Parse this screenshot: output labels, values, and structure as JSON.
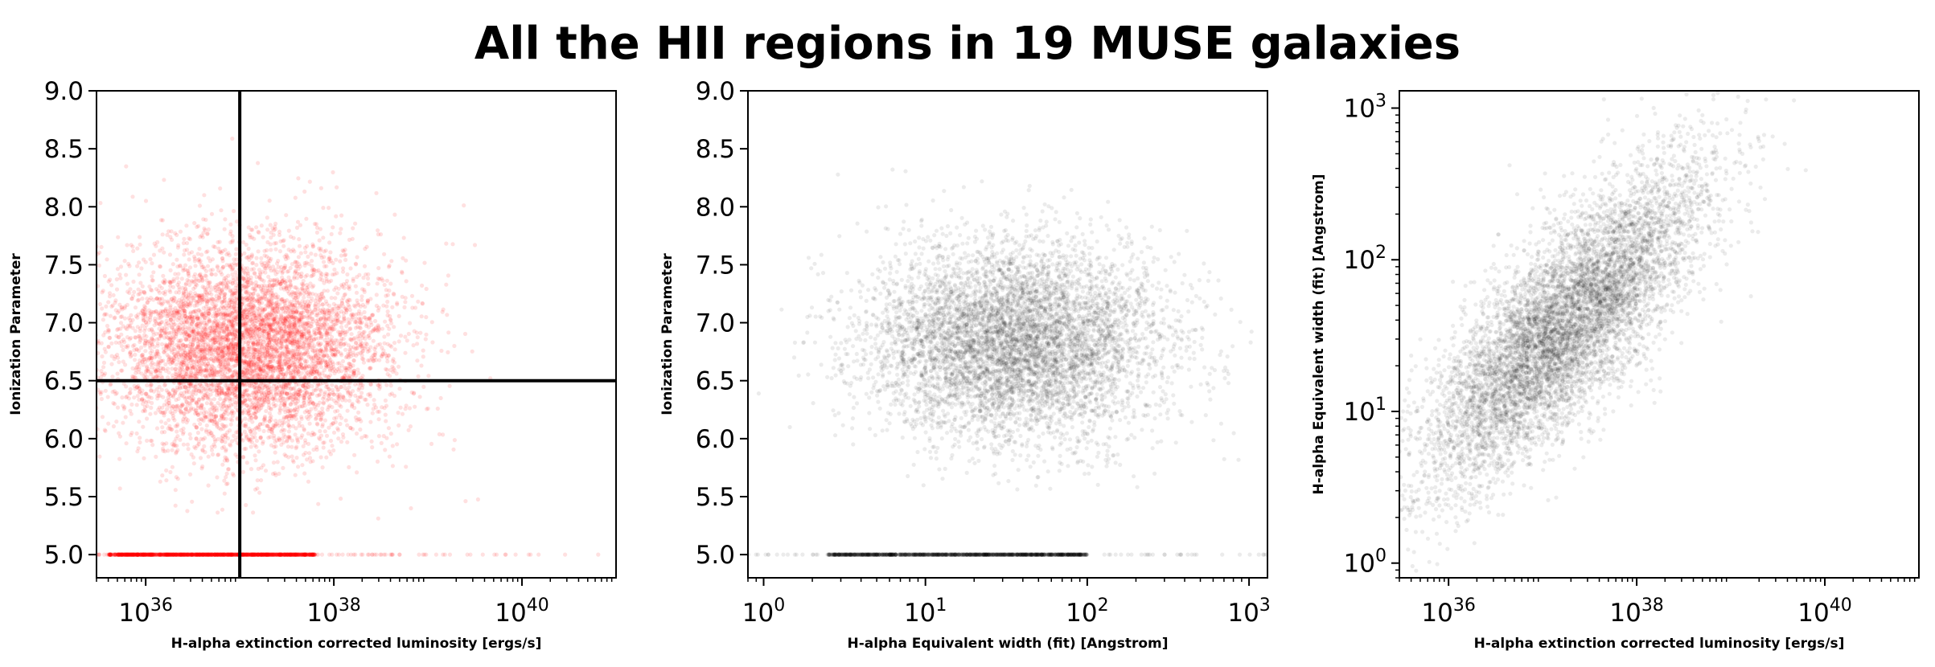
{
  "title": "All the HII regions in 19 MUSE galaxies",
  "chart_data": [
    {
      "type": "scatter",
      "xlabel": "H-alpha extinction corrected luminosity [ergs/s]",
      "ylabel": "Ionization Parameter",
      "xscale": "log",
      "xlim": [
        3e+35,
        1e+41
      ],
      "ylim": [
        4.8,
        9.0
      ],
      "xticks": [
        1e+36,
        1e+38,
        1e+40
      ],
      "xtick_labels": [
        {
          "base": "10",
          "exp": "36"
        },
        {
          "base": "10",
          "exp": "38"
        },
        {
          "base": "10",
          "exp": "40"
        }
      ],
      "yticks": [
        5.0,
        5.5,
        6.0,
        6.5,
        7.0,
        7.5,
        8.0,
        8.5,
        9.0
      ],
      "ytick_labels": [
        "5.0",
        "5.5",
        "6.0",
        "6.5",
        "7.0",
        "7.5",
        "8.0",
        "8.5",
        "9.0"
      ],
      "color": "#ff0000",
      "point_alpha": 0.12,
      "reference_lines": {
        "vertical_x": 1e+37,
        "horizontal_y": 6.5,
        "color": "#000000"
      },
      "distribution": {
        "cloud": {
          "log_x_center": 37.1,
          "log_x_spread": 0.75,
          "y_center": 6.8,
          "y_spread": 0.45,
          "count": 6000
        },
        "floor": {
          "y": 5.0,
          "log_x_range": [
            35.6,
            37.8
          ],
          "count": 1500
        }
      }
    },
    {
      "type": "scatter",
      "xlabel": "H-alpha Equivalent width (fit) [Angstrom]",
      "ylabel": "Ionization Parameter",
      "xscale": "log",
      "xlim": [
        0.8,
        1300
      ],
      "ylim": [
        4.8,
        9.0
      ],
      "xticks": [
        1,
        10,
        100,
        1000
      ],
      "xtick_labels": [
        {
          "base": "10",
          "exp": "0"
        },
        {
          "base": "10",
          "exp": "1"
        },
        {
          "base": "10",
          "exp": "2"
        },
        {
          "base": "10",
          "exp": "3"
        }
      ],
      "yticks": [
        5.0,
        5.5,
        6.0,
        6.5,
        7.0,
        7.5,
        8.0,
        8.5,
        9.0
      ],
      "ytick_labels": [
        "5.0",
        "5.5",
        "6.0",
        "6.5",
        "7.0",
        "7.5",
        "8.0",
        "8.5",
        "9.0"
      ],
      "color": "#000000",
      "point_alpha": 0.08,
      "distribution": {
        "cloud": {
          "log_x_center": 1.55,
          "log_x_spread": 0.45,
          "y_center": 6.85,
          "y_spread": 0.42,
          "count": 6000
        },
        "floor": {
          "y": 5.0,
          "log_x_range": [
            0.4,
            2.0
          ],
          "count": 1500
        }
      }
    },
    {
      "type": "scatter",
      "xlabel": "H-alpha extinction corrected luminosity [ergs/s]",
      "ylabel": "H-alpha Equivalent width (fit) [Angstrom]",
      "xscale": "log",
      "yscale": "log",
      "xlim": [
        3e+35,
        1e+41
      ],
      "ylim": [
        0.8,
        1300
      ],
      "xticks": [
        1e+36,
        1e+38,
        1e+40
      ],
      "xtick_labels": [
        {
          "base": "10",
          "exp": "36"
        },
        {
          "base": "10",
          "exp": "38"
        },
        {
          "base": "10",
          "exp": "40"
        }
      ],
      "yticks": [
        1,
        10,
        100,
        1000
      ],
      "ytick_labels": [
        {
          "base": "10",
          "exp": "0"
        },
        {
          "base": "10",
          "exp": "1"
        },
        {
          "base": "10",
          "exp": "2"
        },
        {
          "base": "10",
          "exp": "3"
        }
      ],
      "color": "#000000",
      "point_alpha": 0.08,
      "distribution": {
        "trend": {
          "log_x_center": 37.2,
          "log_y_center": 1.55,
          "slope": 0.55,
          "log_x_spread": 0.75,
          "log_y_scatter": 0.32,
          "count": 7000
        }
      }
    }
  ]
}
